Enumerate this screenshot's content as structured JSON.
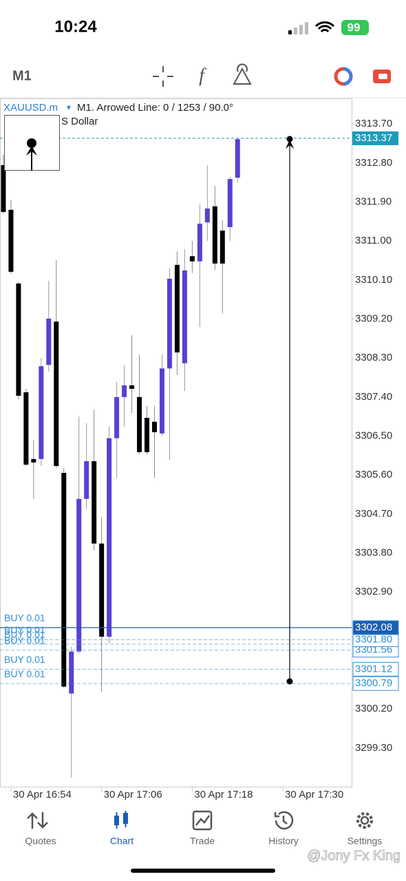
{
  "status_bar": {
    "time": "10:24",
    "battery": "99"
  },
  "toolbar": {
    "timeframe": "M1"
  },
  "chart_data": {
    "type": "candlestick",
    "symbol": "XAUUSD.m",
    "symbol_menu": "▾",
    "info": "M1. Arrowed Line: 0 / 1253 / 90.0°",
    "subtitle": "S Dollar",
    "open": [
      3312.75,
      3311.72,
      3310.02,
      3307.51,
      3305.97,
      3305.97,
      3308.14,
      3309.14,
      3305.65,
      3300.56,
      3301.53,
      3305.05,
      3305.92,
      3304.02,
      3301.87,
      3306.45,
      3307.4,
      3307.67,
      3307.4,
      3306.92,
      3306.83,
      3306.56,
      3308.06,
      3310.45,
      3308.18,
      3310.65,
      3310.53,
      3311.43,
      3311.8,
      3311.24,
      3311.32,
      3312.46
    ],
    "high": [
      3312.99,
      3311.95,
      3310.05,
      3307.59,
      3306.4,
      3308.3,
      3310.08,
      3310.56,
      3305.76,
      3301.64,
      3306.95,
      3306.8,
      3307.11,
      3304.62,
      3306.72,
      3307.75,
      3308.14,
      3308.83,
      3308.38,
      3307.19,
      3307.19,
      3308.38,
      3310.37,
      3310.76,
      3310.81,
      3311.0,
      3311.84,
      3312.75,
      3312.27,
      3311.48,
      3312.48,
      3313.38
    ],
    "low": [
      3311.64,
      3310.24,
      3307.35,
      3305.81,
      3305.05,
      3305.81,
      3307.99,
      3305.76,
      3300.68,
      3298.62,
      3301.48,
      3304.81,
      3303.86,
      3300.6,
      3301.72,
      3305.53,
      3306.72,
      3307.03,
      3306.08,
      3306.08,
      3305.53,
      3306.51,
      3305.95,
      3307.91,
      3307.54,
      3310.26,
      3309.02,
      3311.0,
      3310.33,
      3309.33,
      3311.0,
      3312.35
    ],
    "close": [
      3311.67,
      3310.29,
      3307.43,
      3305.84,
      3305.89,
      3308.11,
      3309.21,
      3305.81,
      3300.72,
      3301.53,
      3305.05,
      3305.92,
      3304.02,
      3301.87,
      3306.45,
      3307.4,
      3307.67,
      3307.59,
      3306.13,
      3306.13,
      3306.59,
      3308.06,
      3310.13,
      3308.43,
      3310.32,
      3310.53,
      3311.4,
      3311.75,
      3310.48,
      3310.48,
      3312.43,
      3313.35
    ],
    "up_color": "#5b3fd2",
    "down_color": "#000000",
    "xlim": [
      -0.45,
      46.1
    ],
    "xticks": [
      {
        "value": 1,
        "label": "30 Apr 16:54"
      },
      {
        "value": 13,
        "label": "30 Apr 17:06"
      },
      {
        "value": 25,
        "label": "30 Apr 17:18"
      },
      {
        "value": 37,
        "label": "30 Apr 17:30"
      }
    ],
    "ylim": [
      3298.41,
      3314.29
    ],
    "yticks": [
      {
        "value": 3313.7,
        "label": "3313.70"
      },
      {
        "value": 3312.8,
        "label": "3312.80"
      },
      {
        "value": 3311.9,
        "label": "3311.90"
      },
      {
        "value": 3311,
        "label": "3311.00"
      },
      {
        "value": 3310.1,
        "label": "3310.10"
      },
      {
        "value": 3309.2,
        "label": "3309.20"
      },
      {
        "value": 3308.3,
        "label": "3308.30"
      },
      {
        "value": 3307.4,
        "label": "3307.40"
      },
      {
        "value": 3306.5,
        "label": "3306.50"
      },
      {
        "value": 3305.6,
        "label": "3305.60"
      },
      {
        "value": 3304.7,
        "label": "3304.70"
      },
      {
        "value": 3303.8,
        "label": "3303.80"
      },
      {
        "value": 3302.9,
        "label": "3302.90"
      },
      {
        "value": 3300.2,
        "label": "3300.20"
      },
      {
        "value": 3299.3,
        "label": "3299.30"
      }
    ],
    "bid": {
      "value": 3313.37,
      "label": "3313.37"
    },
    "bid_color": "#1f9bb8",
    "positions": [
      {
        "label": "BUY 0.01",
        "price": {
          "value": 3302.08,
          "label": "3302.08"
        },
        "solid": true
      },
      {
        "label": "BUY 0.01",
        "price": {
          "value": 3301.8,
          "label": "3301.80"
        }
      },
      {
        "label": "BUY 0.01",
        "price": 3301.7
      },
      {
        "label": "BUY 0.01",
        "price": {
          "value": 3301.56,
          "label": "3301.56"
        }
      },
      {
        "label": "BUY 0.01",
        "price": {
          "value": 3301.12,
          "label": "3301.12"
        }
      },
      {
        "label": "BUY 0.01",
        "price": {
          "value": 3300.79,
          "label": "3300.79"
        }
      }
    ],
    "position_color": "#2f8fd6",
    "active_color": "#1a5fb4"
  },
  "tab_bar": {
    "tabs": [
      "Quotes",
      "Chart",
      "Trade",
      "History",
      "Settings"
    ],
    "active": 1
  },
  "watermark": "@Jony Fx King"
}
